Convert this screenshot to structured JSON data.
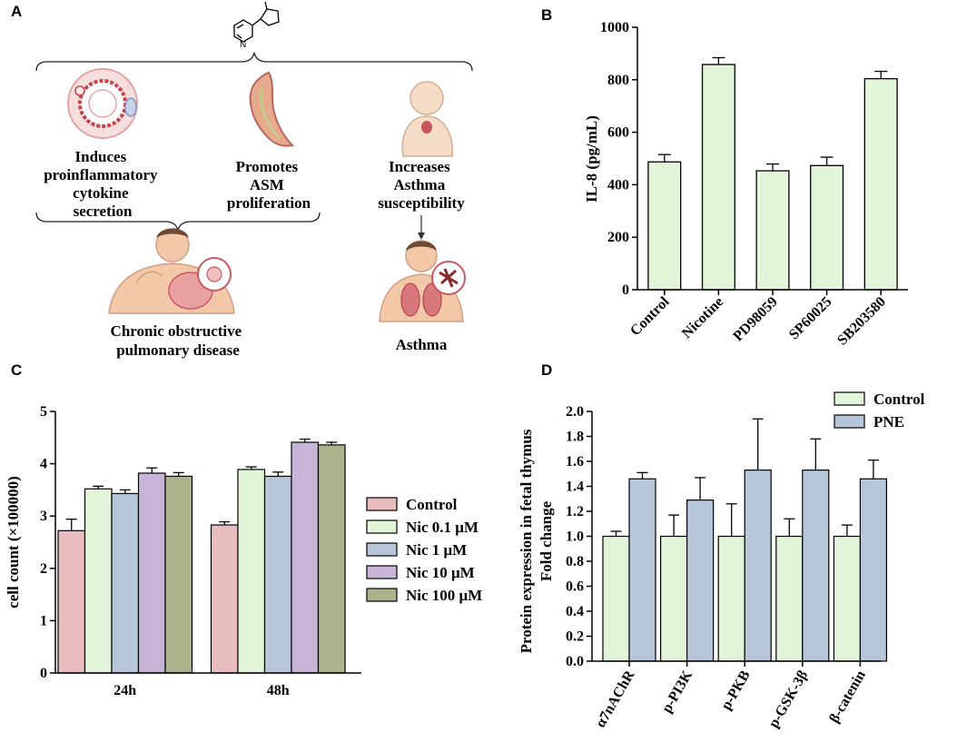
{
  "panels": {
    "a": "A",
    "b": "B",
    "c": "C",
    "d": "D"
  },
  "diagram": {
    "effect_1": [
      "Induces",
      "proinflammatory",
      "cytokine",
      "secretion"
    ],
    "effect_2": [
      "Promotes",
      "ASM",
      "proliferation"
    ],
    "effect_3": [
      "Increases",
      "Asthma",
      "susceptibility"
    ],
    "outcome_1": [
      "Chronic obstructive",
      "pulmonary disease"
    ],
    "outcome_2": [
      "Asthma"
    ]
  },
  "colors": {
    "green_fill": "#e2f5d8",
    "pink_fill": "#e9bcbf",
    "blue_fill": "#b7c6d8",
    "purple_fill": "#c6b5d7",
    "olive_fill": "#adb28c",
    "axis": "#000000"
  },
  "chart_data": [
    {
      "id": "B",
      "type": "bar",
      "title": "",
      "xlabel": "",
      "ylabel": "IL-8 (pg/mL)",
      "ylim": [
        0,
        1000
      ],
      "yticks": [
        0,
        200,
        400,
        600,
        800,
        1000
      ],
      "ytick_labels": [
        "0",
        "200",
        "400",
        "600",
        "800",
        "1000"
      ],
      "categories": [
        "Control",
        "Nicotine",
        "PD98059",
        "SP60025",
        "SB203580"
      ],
      "values": [
        487,
        858,
        453,
        473,
        804
      ],
      "errors": [
        28,
        26,
        26,
        32,
        28
      ]
    },
    {
      "id": "C",
      "type": "bar",
      "title": "",
      "xlabel": "",
      "ylabel": "cell count (×100000)",
      "ylim": [
        0,
        5
      ],
      "yticks": [
        0,
        1,
        2,
        3,
        4,
        5
      ],
      "ytick_labels": [
        "0",
        "1",
        "2",
        "3",
        "4",
        "5"
      ],
      "categories": [
        "24h",
        "48h"
      ],
      "series": [
        {
          "name": "Control",
          "values": [
            2.72,
            2.83
          ],
          "errors": [
            0.22,
            0.06
          ]
        },
        {
          "name": "Nic 0.1 μM",
          "values": [
            3.52,
            3.89
          ],
          "errors": [
            0.05,
            0.05
          ]
        },
        {
          "name": "Nic 1 μM",
          "values": [
            3.43,
            3.76
          ],
          "errors": [
            0.07,
            0.08
          ]
        },
        {
          "name": "Nic 10 μM",
          "values": [
            3.82,
            4.41
          ],
          "errors": [
            0.1,
            0.06
          ]
        },
        {
          "name": "Nic 100 μM",
          "values": [
            3.76,
            4.36
          ],
          "errors": [
            0.07,
            0.05
          ]
        }
      ],
      "legend_position": "right"
    },
    {
      "id": "D",
      "type": "bar",
      "title": "Fold change",
      "xlabel": "",
      "ylabel": "Protein expression in fetal thymus",
      "ylim": [
        0,
        2.0
      ],
      "yticks": [
        0,
        0.2,
        0.4,
        0.6,
        0.8,
        1.0,
        1.2,
        1.4,
        1.6,
        1.8,
        2.0
      ],
      "ytick_labels": [
        "0.0",
        "0.2",
        "0.4",
        "0.6",
        "0.8",
        "1.0",
        "1.2",
        "1.4",
        "1.6",
        "1.8",
        "2.0"
      ],
      "categories": [
        "α7nAChR",
        "p-PI3K",
        "p-PKB",
        "p-GSK-3β",
        "β-catenin"
      ],
      "series": [
        {
          "name": "Control",
          "values": [
            1.0,
            1.0,
            1.0,
            1.0,
            1.0
          ],
          "errors": [
            0.04,
            0.17,
            0.26,
            0.14,
            0.09
          ]
        },
        {
          "name": "PNE",
          "values": [
            1.46,
            1.29,
            1.53,
            1.53,
            1.46
          ],
          "errors": [
            0.05,
            0.18,
            0.41,
            0.25,
            0.15
          ]
        }
      ],
      "legend_position": "top-right"
    }
  ]
}
